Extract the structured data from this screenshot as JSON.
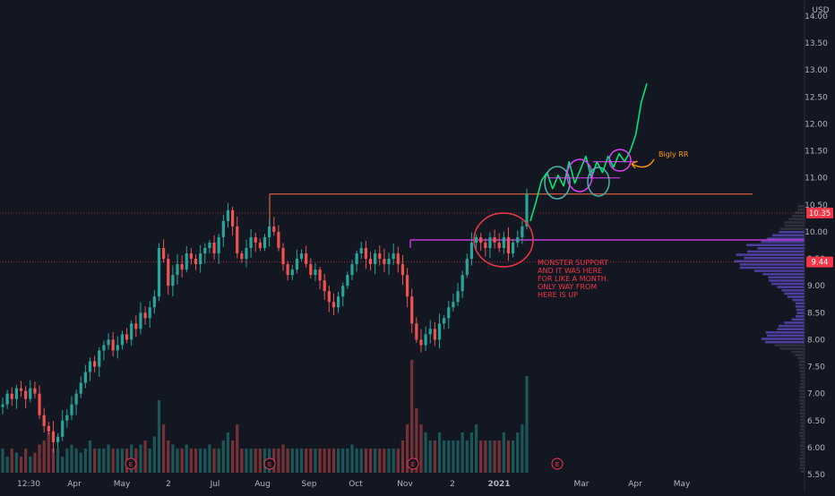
{
  "currency": "USD",
  "chart_data": {
    "type": "candlestick",
    "price_axis": {
      "ticks": [
        "14.00",
        "13.50",
        "13.00",
        "12.50",
        "12.00",
        "11.50",
        "11.00",
        "10.50",
        "10.00",
        "9.50",
        "9.00",
        "8.50",
        "8.00",
        "7.50",
        "7.00",
        "6.50",
        "6.00",
        "5.50"
      ],
      "range": [
        5.5,
        14.0
      ]
    },
    "time_axis": {
      "labels": [
        "12:30",
        "Apr",
        "May",
        "2",
        "Jul",
        "Aug",
        "Sep",
        "Oct",
        "Nov",
        "2",
        "2021",
        "Mar",
        "Apr",
        "May"
      ]
    },
    "price_badges": [
      {
        "value": "10.35",
        "color": "#f23645",
        "text_color": "#ffffff"
      },
      {
        "value": "9.44",
        "color": "#f23645",
        "text_color": "#ffffff"
      }
    ],
    "earnings_markers": [
      "E",
      "E",
      "E",
      "E"
    ],
    "close_series": [
      6.8,
      7.0,
      6.9,
      7.1,
      7.05,
      6.9,
      7.1,
      7.0,
      6.6,
      6.4,
      6.3,
      6.1,
      6.2,
      6.5,
      6.6,
      6.8,
      7.0,
      7.2,
      7.4,
      7.6,
      7.5,
      7.8,
      7.9,
      8.0,
      7.8,
      7.9,
      8.1,
      8.0,
      8.3,
      8.2,
      8.5,
      8.4,
      8.6,
      8.8,
      9.7,
      9.5,
      9.0,
      9.2,
      9.4,
      9.3,
      9.6,
      9.5,
      9.4,
      9.6,
      9.7,
      9.8,
      9.6,
      9.9,
      10.2,
      10.4,
      10.1,
      9.6,
      9.5,
      9.7,
      9.9,
      9.8,
      9.7,
      9.9,
      10.1,
      10.0,
      9.7,
      9.4,
      9.2,
      9.3,
      9.5,
      9.6,
      9.4,
      9.2,
      9.3,
      9.1,
      8.9,
      8.7,
      8.6,
      8.8,
      9.0,
      9.2,
      9.4,
      9.6,
      9.7,
      9.5,
      9.4,
      9.6,
      9.5,
      9.4,
      9.5,
      9.6,
      9.4,
      9.2,
      8.8,
      8.3,
      8.0,
      7.9,
      8.1,
      8.2,
      8.0,
      8.3,
      8.4,
      8.6,
      8.7,
      8.9,
      9.2,
      9.5,
      9.8,
      9.9,
      9.8,
      9.7,
      9.9,
      9.8,
      9.7,
      9.9,
      9.6,
      9.8,
      9.9,
      10.1,
      10.7
    ],
    "volume_series": [
      0.3,
      0.2,
      0.3,
      0.25,
      0.2,
      0.3,
      0.2,
      0.25,
      0.35,
      0.4,
      0.5,
      0.3,
      0.3,
      0.2,
      0.3,
      0.35,
      0.3,
      0.25,
      0.3,
      0.4,
      0.3,
      0.3,
      0.3,
      0.35,
      0.3,
      0.3,
      0.3,
      0.3,
      0.35,
      0.3,
      0.35,
      0.4,
      0.3,
      0.45,
      0.9,
      0.6,
      0.4,
      0.35,
      0.3,
      0.3,
      0.35,
      0.3,
      0.3,
      0.3,
      0.3,
      0.35,
      0.3,
      0.3,
      0.4,
      0.5,
      0.4,
      0.6,
      0.3,
      0.3,
      0.3,
      0.3,
      0.3,
      0.3,
      0.3,
      0.3,
      0.3,
      0.35,
      0.3,
      0.3,
      0.3,
      0.3,
      0.3,
      0.3,
      0.3,
      0.3,
      0.3,
      0.3,
      0.3,
      0.3,
      0.3,
      0.3,
      0.35,
      0.3,
      0.3,
      0.3,
      0.3,
      0.3,
      0.3,
      0.3,
      0.3,
      0.3,
      0.3,
      0.4,
      0.6,
      1.4,
      0.8,
      0.6,
      0.5,
      0.4,
      0.4,
      0.5,
      0.4,
      0.4,
      0.4,
      0.4,
      0.5,
      0.4,
      0.5,
      0.6,
      0.4,
      0.4,
      0.4,
      0.4,
      0.4,
      0.5,
      0.4,
      0.4,
      0.5,
      0.6,
      1.2
    ],
    "annotations": [
      {
        "text": "MONSTER SUPPORT",
        "color": "#f23645"
      },
      {
        "text": "AND IT WAS HERE",
        "color": "#f23645"
      },
      {
        "text": "FOR LIKE A MONTH.",
        "color": "#f23645"
      },
      {
        "text": "ONLY WAY FROM",
        "color": "#f23645"
      },
      {
        "text": "HERE IS UP",
        "color": "#f23645"
      },
      {
        "text": "Bigly RR",
        "color": "#ff9800"
      }
    ],
    "horizontal_levels": [
      {
        "value": 10.7,
        "color": "#ff7043"
      },
      {
        "value": 9.85,
        "color": "#e040fb"
      },
      {
        "value": 10.35,
        "color": "#f23645",
        "dotted": true
      },
      {
        "value": 9.44,
        "color": "#f23645",
        "dotted": true
      }
    ],
    "projection_path_prices": [
      10.2,
      10.55,
      10.95,
      11.1,
      10.8,
      11.05,
      10.85,
      11.3,
      10.9,
      11.15,
      11.4,
      11.0,
      11.3,
      11.1,
      11.4,
      11.2,
      11.45,
      11.3,
      11.5,
      11.8,
      12.4,
      12.75
    ],
    "colors": {
      "up": "#26a69a",
      "down": "#ef5350",
      "projection": "#00e676",
      "ellipse_red": "#f23645",
      "ellipse_purple": "#e040fb",
      "ellipse_teal": "#4db6ac",
      "volume_profile": "#7b61ff",
      "background": "#131722"
    }
  }
}
